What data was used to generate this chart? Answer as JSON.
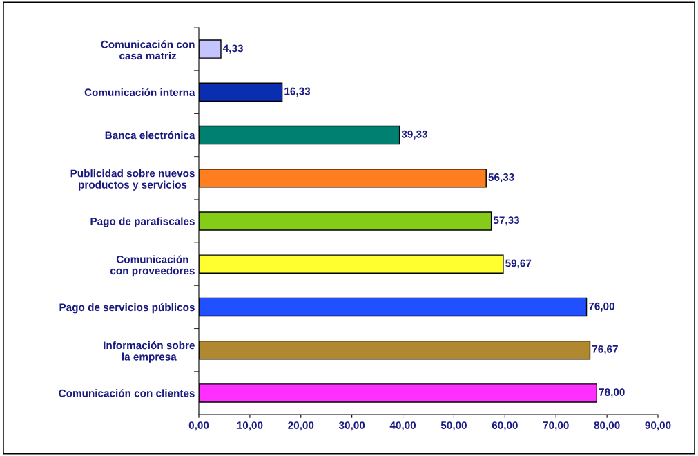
{
  "chart_data": {
    "type": "bar",
    "orientation": "horizontal",
    "categories": [
      "Comunicación con\ncasa matriz",
      "Comunicación interna",
      "Banca electrónica",
      "Publicidad sobre nuevos\nproductos y servicios",
      "Pago de parafiscales",
      "Comunicación\ncon proveedores",
      "Pago de servicios públicos",
      "Información sobre\nla empresa",
      "Comunicación con clientes"
    ],
    "values": [
      4.33,
      16.33,
      39.33,
      56.33,
      57.33,
      59.67,
      76.0,
      76.67,
      78.0
    ],
    "colors": [
      "#c4c4ff",
      "#0a2eb0",
      "#008070",
      "#ff7f20",
      "#84cc18",
      "#ffff30",
      "#2050ff",
      "#b08830",
      "#ff30ff"
    ],
    "value_labels": [
      "4,33",
      "16,33",
      "39,33",
      "56,33",
      "57,33",
      "59,67",
      "76,00",
      "76,67",
      "78,00"
    ],
    "xlim": [
      0,
      90
    ],
    "xticks": [
      {
        "value": 0,
        "label": "0,00"
      },
      {
        "value": 10,
        "label": "10,00"
      },
      {
        "value": 20,
        "label": "20,00"
      },
      {
        "value": 30,
        "label": "30,00"
      },
      {
        "value": 40,
        "label": "40,00"
      },
      {
        "value": 50,
        "label": "50,00"
      },
      {
        "value": 60,
        "label": "60,00"
      },
      {
        "value": 70,
        "label": "70,00"
      },
      {
        "value": 80,
        "label": "80,00"
      },
      {
        "value": 90,
        "label": "90,00"
      }
    ],
    "grid": false,
    "legend": false
  }
}
